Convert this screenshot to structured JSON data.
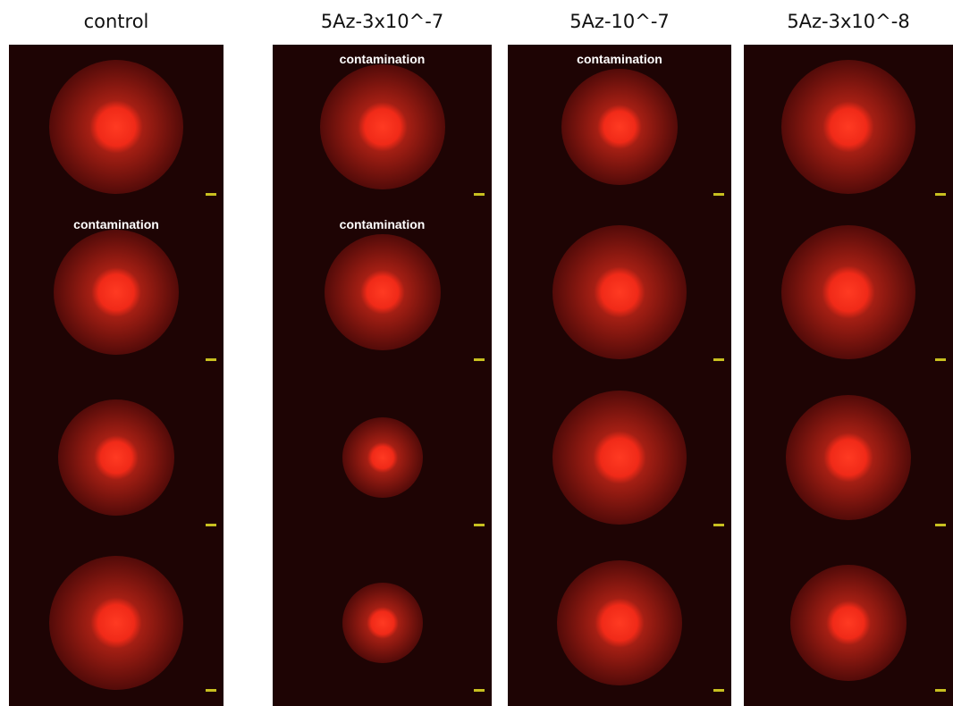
{
  "columns": [
    {
      "header": "control",
      "panels": [
        null,
        "contamination",
        null,
        null
      ]
    },
    {
      "header": "5Az-3x10^-7",
      "panels": [
        "contamination",
        "contamination",
        null,
        null
      ]
    },
    {
      "header": "5Az-10^-7",
      "panels": [
        "contamination",
        null,
        null,
        null
      ]
    },
    {
      "header": "5Az-3x10^-8",
      "panels": [
        null,
        null,
        null,
        null
      ]
    }
  ]
}
